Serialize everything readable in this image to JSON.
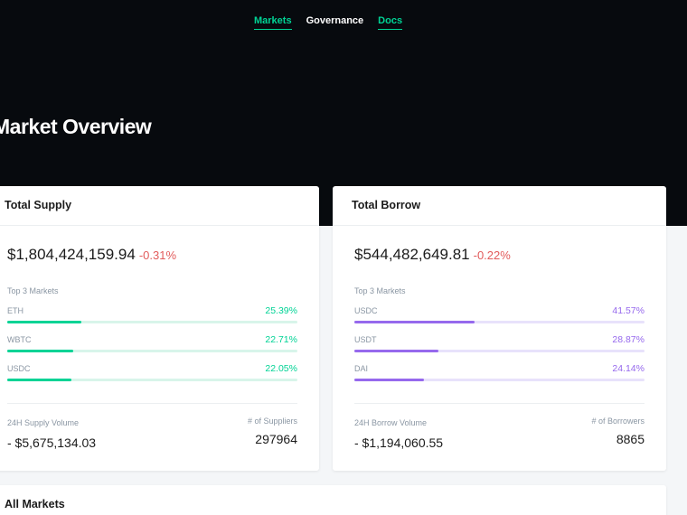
{
  "nav": {
    "markets": "Markets",
    "governance": "Governance",
    "docs": "Docs"
  },
  "hero": {
    "title": "Market Overview"
  },
  "colors": {
    "hero_bg": "#070a0e",
    "supply_accent": "#00d395",
    "borrow_accent": "#9669ed",
    "negative": "#e25b5b"
  },
  "supply": {
    "title": "Total Supply",
    "total": "$1,804,424,159.94",
    "change": "-0.31%",
    "top3_label": "Top 3 Markets",
    "markets": [
      {
        "name": "ETH",
        "pct": "25.39%",
        "share": 0.2539
      },
      {
        "name": "WBTC",
        "pct": "22.71%",
        "share": 0.2271
      },
      {
        "name": "USDC",
        "pct": "22.05%",
        "share": 0.2205
      }
    ],
    "volume_label": "24H Supply Volume",
    "volume_value": "- $5,675,134.03",
    "count_label": "# of Suppliers",
    "count_value": "297964"
  },
  "borrow": {
    "title": "Total Borrow",
    "total": "$544,482,649.81",
    "change": "-0.22%",
    "top3_label": "Top 3 Markets",
    "markets": [
      {
        "name": "USDC",
        "pct": "41.57%",
        "share": 0.4157
      },
      {
        "name": "USDT",
        "pct": "28.87%",
        "share": 0.2887
      },
      {
        "name": "DAI",
        "pct": "24.14%",
        "share": 0.2414
      }
    ],
    "volume_label": "24H Borrow Volume",
    "volume_value": "- $1,194,060.55",
    "count_label": "# of Borrowers",
    "count_value": "8865"
  },
  "all_markets": {
    "title": "All Markets"
  }
}
